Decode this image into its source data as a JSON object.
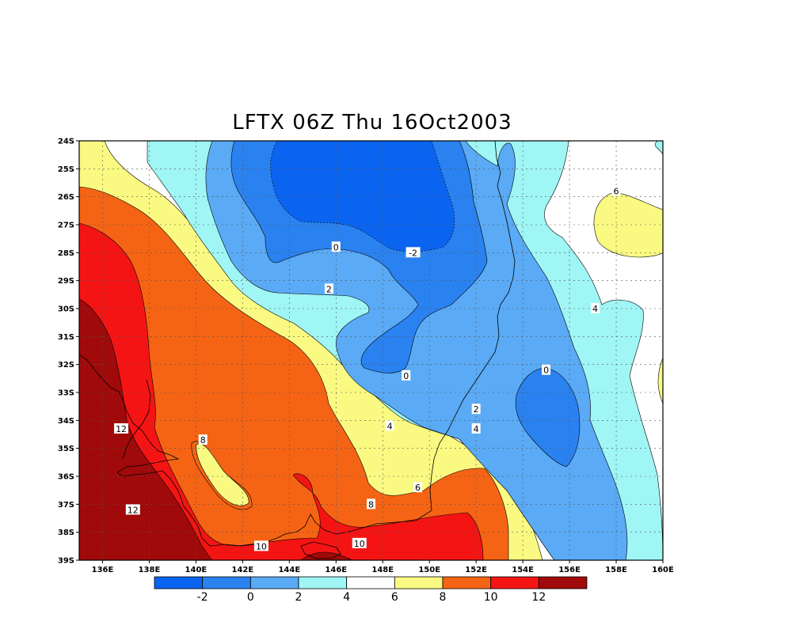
{
  "title": "LFTX 06Z Thu 16Oct2003",
  "map": {
    "lat_labels": [
      "24S",
      "25S",
      "26S",
      "27S",
      "28S",
      "29S",
      "30S",
      "31S",
      "32S",
      "33S",
      "34S",
      "35S",
      "36S",
      "37S",
      "38S",
      "39S"
    ],
    "lon_labels": [
      "136E",
      "138E",
      "140E",
      "142E",
      "144E",
      "146E",
      "148E",
      "150E",
      "152E",
      "154E",
      "156E",
      "158E",
      "160E"
    ],
    "contour_labels": [
      {
        "text": "6",
        "lon": 158.0,
        "lat": -25.8
      },
      {
        "text": "0",
        "lon": 146.0,
        "lat": -27.8
      },
      {
        "text": "-2",
        "lon": 149.3,
        "lat": -28.0
      },
      {
        "text": "2",
        "lon": 145.7,
        "lat": -29.3
      },
      {
        "text": "4",
        "lon": 157.1,
        "lat": -30.0
      },
      {
        "text": "0",
        "lon": 155.0,
        "lat": -32.2
      },
      {
        "text": "0",
        "lon": 149.0,
        "lat": -32.4
      },
      {
        "text": "2",
        "lon": 152.0,
        "lat": -33.6
      },
      {
        "text": "4",
        "lon": 148.3,
        "lat": -34.2
      },
      {
        "text": "4",
        "lon": 152.0,
        "lat": -34.3
      },
      {
        "text": "12",
        "lon": 136.8,
        "lat": -34.3
      },
      {
        "text": "8",
        "lon": 140.3,
        "lat": -34.7
      },
      {
        "text": "6",
        "lon": 149.5,
        "lat": -36.4
      },
      {
        "text": "8",
        "lon": 147.5,
        "lat": -37.0
      },
      {
        "text": "12",
        "lon": 137.3,
        "lat": -37.2
      },
      {
        "text": "10",
        "lon": 142.8,
        "lat": -38.5
      },
      {
        "text": "10",
        "lon": 147.0,
        "lat": -38.4
      }
    ]
  },
  "colorbar": {
    "labels": [
      "-2",
      "0",
      "2",
      "4",
      "6",
      "8",
      "10",
      "12"
    ],
    "colors": [
      "#0a64f0",
      "#2a82f0",
      "#5aaaf5",
      "#a0f5f5",
      "#ffffff",
      "#fafa82",
      "#f56414",
      "#f51414",
      "#a00a0a"
    ]
  }
}
